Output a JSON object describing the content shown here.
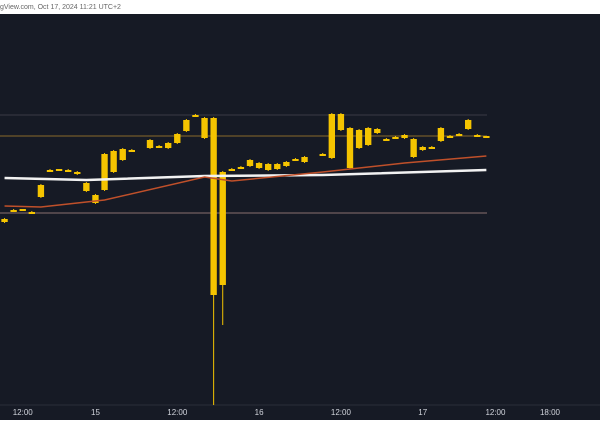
{
  "chart_data": {
    "type": "candlestick",
    "title": "gView.com, Oct 17, 2024 11:21 UTC+2",
    "color": "#f5c400",
    "xlim": [
      -0.5,
      65.5
    ],
    "ylim": [
      0,
      391
    ],
    "xticks": [
      {
        "value": 2,
        "label": "12:00"
      },
      {
        "value": 10,
        "label": "15"
      },
      {
        "value": 19,
        "label": "12:00"
      },
      {
        "value": 28,
        "label": "16"
      },
      {
        "value": 37,
        "label": "12:00"
      },
      {
        "value": 46,
        "label": "17"
      },
      {
        "value": 54,
        "label": "12:00"
      },
      {
        "value": 60,
        "label": "18:00"
      }
    ],
    "x": [
      0,
      1,
      2,
      3,
      4,
      5,
      6,
      7,
      8,
      9,
      10,
      11,
      12,
      13,
      14,
      16,
      17,
      18,
      19,
      20,
      21,
      22,
      23,
      24,
      25,
      26,
      27,
      28,
      29,
      30,
      31,
      32,
      33,
      35,
      36,
      37,
      38,
      39,
      40,
      41,
      42,
      43,
      44,
      45,
      46,
      47,
      48,
      49,
      50,
      51,
      52,
      53
    ],
    "open": [
      186,
      194,
      195,
      193,
      208,
      234,
      235,
      235,
      233,
      222,
      210,
      215,
      233,
      245,
      254,
      257,
      259,
      257,
      262,
      274,
      289,
      287,
      287,
      120,
      235,
      237,
      239,
      242,
      235,
      236,
      239,
      245,
      243,
      250,
      247,
      291,
      277,
      257,
      260,
      272,
      265,
      267,
      267,
      266,
      255,
      257,
      264,
      268,
      270,
      276,
      269,
      268
    ],
    "high": [
      187,
      196,
      196,
      194,
      221,
      236,
      236,
      236,
      234,
      223,
      211,
      252,
      255,
      257,
      256,
      266,
      260,
      263,
      272,
      286,
      291,
      288,
      288,
      234,
      237,
      239,
      246,
      243,
      242,
      242,
      244,
      247,
      249,
      252,
      292,
      292,
      278,
      276,
      278,
      277,
      267,
      269,
      271,
      267,
      259,
      259,
      278,
      270,
      272,
      286,
      271,
      269
    ],
    "low": [
      182,
      193,
      194,
      191,
      207,
      233,
      234,
      233,
      230,
      213,
      201,
      214,
      232,
      244,
      253,
      256,
      257,
      256,
      261,
      273,
      288,
      266,
      0,
      80,
      234,
      236,
      238,
      236,
      234,
      235,
      238,
      244,
      242,
      249,
      246,
      274,
      236,
      256,
      259,
      271,
      264,
      266,
      266,
      247,
      254,
      256,
      263,
      267,
      269,
      275,
      268,
      267
    ],
    "close": [
      183,
      195,
      196,
      192,
      220,
      235,
      236,
      234,
      231,
      214,
      202,
      251,
      254,
      256,
      255,
      265,
      258,
      262,
      271,
      285,
      290,
      267,
      110,
      233,
      236,
      238,
      245,
      237,
      241,
      241,
      243,
      246,
      248,
      251,
      291,
      275,
      237,
      275,
      277,
      276,
      266,
      268,
      270,
      248,
      258,
      258,
      277,
      269,
      271,
      285,
      270,
      269
    ],
    "lines": [
      {
        "color": "#f2f2f2",
        "x": [
          0,
          9,
          22,
          35,
          53
        ],
        "values": [
          227,
          225,
          229,
          230,
          235
        ]
      },
      {
        "color": "#c0502a",
        "x": [
          0,
          4,
          11,
          22,
          25,
          35,
          44,
          53
        ],
        "values": [
          199,
          198,
          205,
          228,
          224,
          233,
          242,
          249
        ]
      }
    ],
    "hlines": [
      {
        "value": 290,
        "color": "#3a3a45"
      },
      {
        "value": 269,
        "color": "#8a6a2a"
      },
      {
        "value": 192,
        "color": "#8a7070"
      }
    ]
  }
}
